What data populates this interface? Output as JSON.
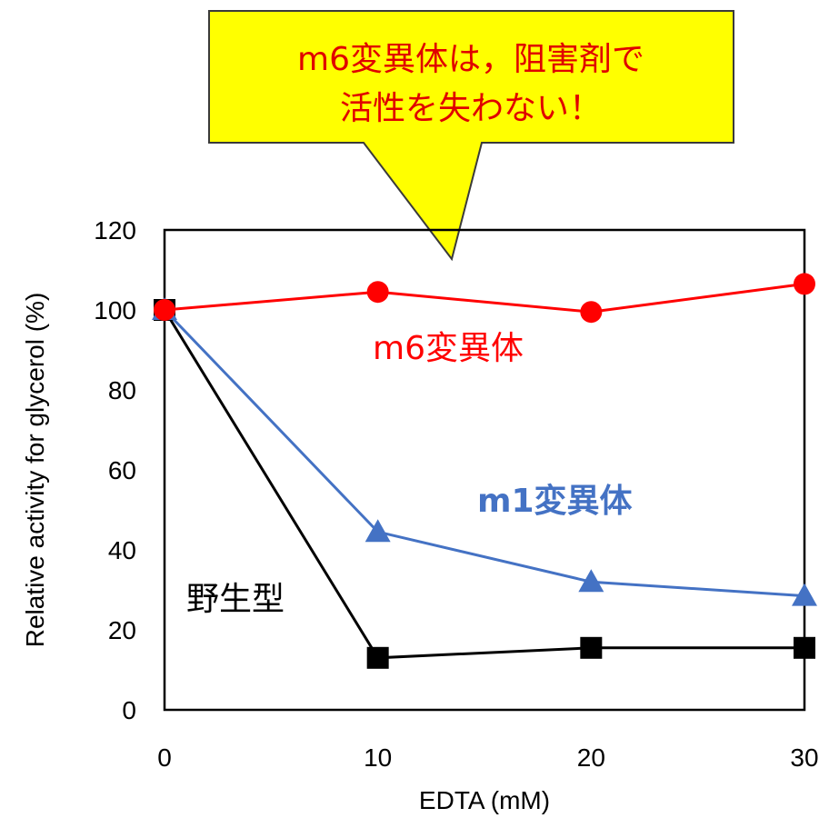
{
  "callout": {
    "line1": "m6変異体は，阻害剤で",
    "line2": "活性を失わない！",
    "fill": "#ffff00",
    "text_color": "#e00000"
  },
  "chart_data": {
    "type": "line",
    "xlabel": "EDTA (mM)",
    "ylabel": "Relative activity for glycerol (%)",
    "x": [
      0,
      10,
      20,
      30
    ],
    "xlim": [
      0,
      30
    ],
    "ylim": [
      0,
      120
    ],
    "xticks": [
      0,
      10,
      20,
      30
    ],
    "yticks": [
      0,
      20,
      40,
      60,
      80,
      100,
      120
    ],
    "grid": false,
    "legend": "none",
    "series": [
      {
        "name": "m6変異体",
        "color": "#ff0000",
        "marker": "circle",
        "label_bold": false,
        "values": [
          100,
          104.5,
          99.5,
          106.5
        ]
      },
      {
        "name": "m1変異体",
        "color": "#4472c4",
        "marker": "triangle",
        "label_bold": true,
        "values": [
          100,
          44.5,
          32,
          28.5
        ]
      },
      {
        "name": "野生型",
        "color": "#000000",
        "marker": "square",
        "label_bold": false,
        "values": [
          100,
          13,
          15.5,
          15.5
        ]
      }
    ]
  }
}
